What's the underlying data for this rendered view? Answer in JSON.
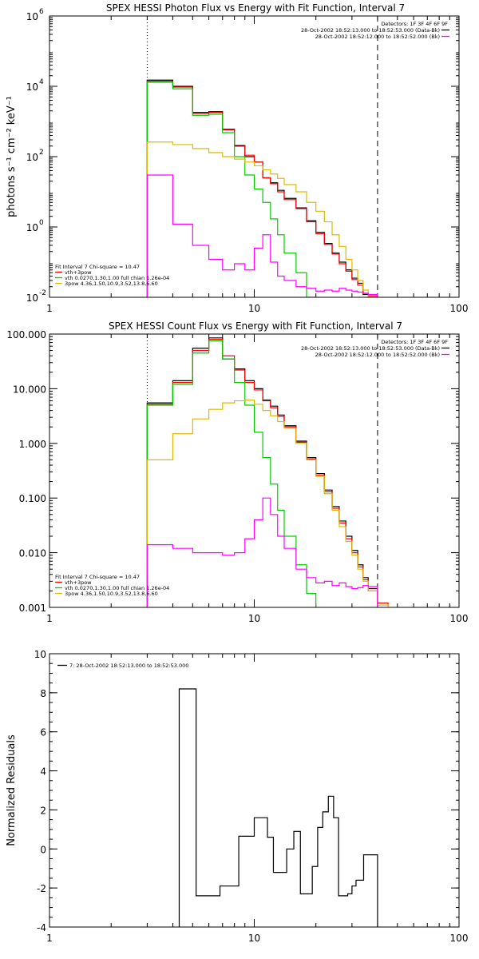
{
  "chart_data": [
    {
      "type": "line",
      "title": "SPEX HESSI Photon Flux vs Energy with Fit Function, Interval 7",
      "xlabel": "",
      "ylabel": "photons s⁻¹ cm⁻² keV⁻¹",
      "xscale": "log",
      "yscale": "log",
      "xlim": [
        1,
        100
      ],
      "ylim": [
        0.01,
        1000000
      ],
      "x_ticks": [
        {
          "v": 1,
          "label": "1"
        },
        {
          "v": 10,
          "label": "10"
        },
        {
          "v": 100,
          "label": "100"
        }
      ],
      "y_ticks": [
        {
          "v": 0.01,
          "label": "10",
          "exp": "-2"
        },
        {
          "v": 1,
          "label": "10",
          "exp": "0"
        },
        {
          "v": 100,
          "label": "10",
          "exp": "2"
        },
        {
          "v": 10000,
          "label": "10",
          "exp": "4"
        },
        {
          "v": 1000000,
          "label": "10",
          "exp": "6"
        }
      ],
      "vlines": [
        {
          "x": 3,
          "style": "dotted"
        },
        {
          "x": 40,
          "style": "dashed"
        }
      ],
      "legend_top_right": {
        "heading": "Detectors: 1F 3F 4F 6F 9F",
        "entries": [
          {
            "label": "28-Oct-2002 18:52:13.000 to 18:52:53.000 (Data-Bk)",
            "color": "#000000"
          },
          {
            "label": "28-Oct-2002 18:52:12.000 to 18:52:52.000 (Bk)",
            "color": "#ff00ff"
          }
        ]
      },
      "legend_bottom_left": {
        "heading": "Fit Interval 7   Chi-square = 10.47",
        "entries": [
          {
            "label": "vth+3pow",
            "color": "#ff0000"
          },
          {
            "label": "vth 0.0270,1.30,1.00  full chian 1.26e-04",
            "color": "#00cc00"
          },
          {
            "label": "3pow 4.36,1.50,10.9,3.52,13.8,6.60",
            "color": "#ddbb00"
          }
        ]
      },
      "series": [
        {
          "color": "#000000",
          "edges": [
            3,
            4,
            5,
            6,
            7,
            8,
            9,
            10,
            11,
            12,
            13,
            14,
            16,
            18,
            20,
            22,
            24,
            26,
            28,
            30,
            32,
            34,
            36,
            40
          ],
          "values": [
            15000,
            10000,
            1800,
            1900,
            600,
            200,
            100,
            70,
            25,
            18,
            11,
            6.5,
            3.5,
            1.5,
            0.7,
            0.34,
            0.18,
            0.1,
            0.06,
            0.035,
            0.025,
            0.012,
            0.01
          ]
        },
        {
          "color": "#ff0000",
          "edges": [
            3,
            4,
            5,
            6,
            7,
            8,
            9,
            10,
            11,
            12,
            13,
            14,
            16,
            18,
            20,
            22,
            24,
            26,
            28,
            30,
            32,
            34,
            36,
            40
          ],
          "values": [
            14000,
            9500,
            1700,
            1800,
            580,
            210,
            110,
            70,
            25,
            17,
            10,
            6,
            3.3,
            1.4,
            0.65,
            0.32,
            0.17,
            0.09,
            0.055,
            0.032,
            0.022,
            0.013,
            0.011
          ]
        },
        {
          "color": "#00cc00",
          "edges": [
            3,
            4,
            5,
            6,
            7,
            8,
            9,
            10,
            11,
            12,
            13,
            14,
            16,
            18,
            20
          ],
          "values": [
            13000,
            8500,
            1500,
            1600,
            480,
            100,
            30,
            12,
            5,
            1.7,
            0.6,
            0.18,
            0.05,
            0.01
          ]
        },
        {
          "color": "#ddbb00",
          "edges": [
            3,
            4,
            5,
            6,
            7,
            8,
            9,
            10,
            11,
            12,
            13,
            14,
            16,
            18,
            20,
            22,
            24,
            26,
            28,
            30,
            32,
            34,
            36,
            40
          ],
          "values": [
            260,
            220,
            170,
            130,
            100,
            85,
            70,
            55,
            42,
            32,
            24,
            16,
            10,
            5,
            2.8,
            1.4,
            0.6,
            0.28,
            0.12,
            0.06,
            0.03,
            0.016,
            0.01
          ]
        },
        {
          "color": "#ff00ff",
          "edges": [
            3,
            4,
            5,
            6,
            7,
            8,
            9,
            10,
            11,
            12,
            13,
            14,
            16,
            18,
            20,
            22,
            24,
            26,
            28,
            30,
            32,
            34,
            36,
            40
          ],
          "values": [
            30,
            1.2,
            0.3,
            0.12,
            0.06,
            0.09,
            0.06,
            0.25,
            0.6,
            0.1,
            0.04,
            0.03,
            0.02,
            0.018,
            0.015,
            0.016,
            0.015,
            0.018,
            0.016,
            0.015,
            0.014,
            0.013,
            0.012
          ]
        }
      ]
    },
    {
      "type": "line",
      "title": "SPEX HESSI Count Flux vs Energy with Fit Function, Interval 7",
      "xlabel": "",
      "ylabel": "",
      "xscale": "log",
      "yscale": "log",
      "xlim": [
        1,
        100
      ],
      "ylim": [
        0.001,
        100
      ],
      "x_ticks": [
        {
          "v": 1,
          "label": "1"
        },
        {
          "v": 10,
          "label": "10"
        },
        {
          "v": 100,
          "label": "100"
        }
      ],
      "y_ticks": [
        {
          "v": 0.001,
          "label": "0.001"
        },
        {
          "v": 0.01,
          "label": "0.010"
        },
        {
          "v": 0.1,
          "label": "0.100"
        },
        {
          "v": 1,
          "label": "1.000"
        },
        {
          "v": 10,
          "label": "10.000"
        },
        {
          "v": 100,
          "label": "100.000"
        }
      ],
      "vlines": [
        {
          "x": 3,
          "style": "dotted"
        },
        {
          "x": 40,
          "style": "dashed"
        }
      ],
      "legend_top_right": {
        "heading": "Detectors: 1F 3F 4F 6F 9F",
        "entries": [
          {
            "label": "28-Oct-2002 18:52:13.000 to 18:52:53.000 (Data-Bk)",
            "color": "#000000"
          },
          {
            "label": "28-Oct-2002 18:52:12.000 to 18:52:52.000 (Bk)",
            "color": "#ff00ff"
          }
        ]
      },
      "legend_bottom_left": {
        "heading": "Fit Interval 7   Chi-square = 10.47",
        "entries": [
          {
            "label": "vth+3pow",
            "color": "#ff0000"
          },
          {
            "label": "vth 0.0270,1.30,1.00  full chian 1.26e-04",
            "color": "#00cc00"
          },
          {
            "label": "3pow 4.36,1.50,10.9,3.52,13.8,6.60",
            "color": "#ddbb00"
          }
        ]
      },
      "series": [
        {
          "color": "#000000",
          "edges": [
            3,
            4,
            5,
            6,
            7,
            8,
            9,
            10,
            11,
            12,
            13,
            14,
            16,
            18,
            20,
            22,
            24,
            26,
            28,
            30,
            32,
            34,
            36,
            40
          ],
          "values": [
            5.5,
            14,
            55,
            85,
            35,
            23,
            14,
            10,
            6.2,
            4.8,
            3.3,
            2.1,
            1.1,
            0.55,
            0.28,
            0.14,
            0.07,
            0.038,
            0.02,
            0.011,
            0.006,
            0.0035,
            0.0022
          ]
        },
        {
          "color": "#ff0000",
          "edges": [
            3,
            4,
            5,
            6,
            7,
            8,
            9,
            10,
            11,
            12,
            13,
            14,
            16,
            18,
            20,
            22,
            24,
            26,
            28,
            30,
            32,
            34,
            36,
            40,
            45
          ],
          "values": [
            5.2,
            13,
            50,
            80,
            40,
            22,
            13,
            9.5,
            6,
            4.5,
            3.1,
            2,
            1.05,
            0.52,
            0.26,
            0.13,
            0.065,
            0.035,
            0.018,
            0.01,
            0.0055,
            0.0032,
            0.002,
            0.0012
          ]
        },
        {
          "color": "#00cc00",
          "edges": [
            3,
            4,
            5,
            6,
            7,
            8,
            9,
            10,
            11,
            12,
            13,
            14,
            16,
            18,
            20
          ],
          "values": [
            5,
            12,
            45,
            75,
            35,
            13,
            5,
            1.6,
            0.55,
            0.18,
            0.06,
            0.02,
            0.006,
            0.0018
          ]
        },
        {
          "color": "#ddbb00",
          "edges": [
            3,
            4,
            5,
            6,
            7,
            8,
            9,
            10,
            11,
            12,
            13,
            14,
            16,
            18,
            20,
            22,
            24,
            26,
            28,
            30,
            32,
            34,
            36,
            40,
            45
          ],
          "values": [
            0.5,
            1.5,
            2.8,
            4.2,
            5.5,
            6,
            6.2,
            5.2,
            4,
            3.2,
            2.5,
            1.9,
            1,
            0.5,
            0.25,
            0.12,
            0.06,
            0.03,
            0.016,
            0.009,
            0.005,
            0.003,
            0.002,
            0.0011
          ]
        },
        {
          "color": "#ff00ff",
          "edges": [
            3,
            4,
            5,
            6,
            7,
            8,
            9,
            10,
            11,
            12,
            13,
            14,
            16,
            18,
            20,
            22,
            24,
            26,
            28,
            30,
            32,
            34,
            36,
            40
          ],
          "values": [
            0.014,
            0.012,
            0.01,
            0.01,
            0.009,
            0.01,
            0.018,
            0.04,
            0.1,
            0.05,
            0.02,
            0.012,
            0.005,
            0.0035,
            0.0028,
            0.003,
            0.0025,
            0.0028,
            0.0024,
            0.0022,
            0.0023,
            0.0025,
            0.0024
          ]
        }
      ]
    },
    {
      "type": "line",
      "title": "",
      "xlabel": "",
      "ylabel": "Normalized Residuals",
      "xscale": "log",
      "yscale": "linear",
      "xlim": [
        1,
        100
      ],
      "ylim": [
        -4,
        10
      ],
      "x_ticks": [
        {
          "v": 1,
          "label": "1"
        },
        {
          "v": 10,
          "label": "10"
        },
        {
          "v": 100,
          "label": "100"
        }
      ],
      "y_ticks": [
        {
          "v": -4,
          "label": "-4"
        },
        {
          "v": -2,
          "label": "-2"
        },
        {
          "v": 0,
          "label": "0"
        },
        {
          "v": 2,
          "label": "2"
        },
        {
          "v": 4,
          "label": "4"
        },
        {
          "v": 6,
          "label": "6"
        },
        {
          "v": 8,
          "label": "8"
        },
        {
          "v": 10,
          "label": "10"
        }
      ],
      "legend_top_left": {
        "entries": [
          {
            "label": "7: 28-Oct-2002 18:52:13.000 to 18:52:53.000",
            "color": "#000000"
          }
        ]
      },
      "series": [
        {
          "color": "#000000",
          "edges": [
            4.3,
            5.2,
            6.0,
            6.8,
            7.6,
            8.4,
            9.2,
            10.0,
            10.8,
            11.6,
            12.4,
            13.2,
            14.4,
            15.6,
            16.8,
            18.0,
            19.2,
            20.4,
            21.6,
            23.0,
            24.4,
            25.8,
            27.2,
            28.6,
            30.0,
            31.4,
            32.8,
            34.2,
            35.6,
            37.0,
            38.4,
            40.0
          ],
          "values": [
            8.2,
            -2.4,
            -2.4,
            -1.9,
            -1.9,
            0.65,
            0.65,
            1.6,
            1.6,
            0.6,
            -1.2,
            -1.2,
            0.0,
            0.9,
            -2.3,
            -2.3,
            -0.9,
            1.1,
            1.9,
            2.7,
            1.6,
            -2.4,
            -2.4,
            -2.3,
            -1.9,
            -1.6,
            -1.6,
            -0.3,
            -0.3,
            -0.3,
            -0.3
          ]
        }
      ]
    }
  ]
}
